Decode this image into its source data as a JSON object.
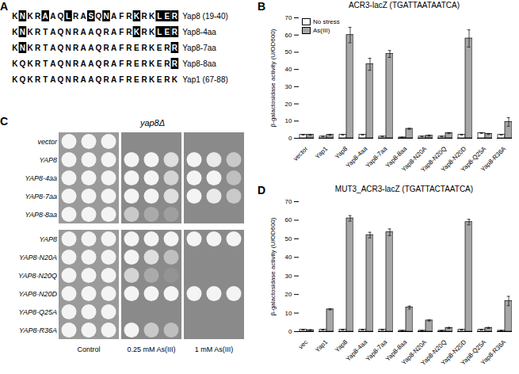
{
  "chart_data": [
    {
      "type": "bar",
      "title": "ACR3-lacZ (TGATTAATAATCA)",
      "y_label": "β-galactosidase activity (U/OD600)",
      "categories": [
        "vector",
        "Yap1",
        "Yap8",
        "Yap8-4aa",
        "Yap8-7aa",
        "Yap8-8aa",
        "Yap8-N20A",
        "Yap8-N20Q",
        "Yap8-N20D",
        "Yap8-Q25A",
        "Yap8-R36A"
      ],
      "series": [
        {
          "name": "No stress",
          "color": "#ffffff",
          "values": [
            2,
            1,
            2,
            2,
            1,
            0.5,
            1,
            1,
            2,
            3,
            2
          ],
          "errors": [
            0.2,
            0.2,
            0.3,
            0.3,
            0.2,
            0.1,
            0.2,
            0.2,
            0.3,
            0.3,
            0.3
          ]
        },
        {
          "name": "As(III)",
          "color": "#a6a6a6",
          "values": [
            2,
            2,
            60,
            43,
            49,
            5.5,
            1.5,
            3,
            58,
            2.5,
            9.5
          ],
          "errors": [
            0.3,
            0.3,
            4.5,
            3.5,
            2,
            0.3,
            0.3,
            0.3,
            5,
            0.3,
            2.5
          ]
        }
      ],
      "ylim": [
        0,
        70
      ],
      "yticks": [
        0,
        10,
        20,
        30,
        40,
        50,
        60,
        70
      ],
      "legend": "top-left"
    },
    {
      "type": "bar",
      "title": "MUT3_ACR3-lacZ (TGATTACTAATCA)",
      "y_label": "β-galactosidase activity (U/OD600)",
      "categories": [
        "vec",
        "Yap1",
        "Yap8",
        "Yap8-4aa",
        "Yap8-7aa",
        "Yap8-8aa",
        "Yap8-N20A",
        "Yap8-N20Q",
        "Yap8-N20D",
        "Yap8-Q25A",
        "Yap8-R36A"
      ],
      "series": [
        {
          "name": "No stress",
          "color": "#ffffff",
          "values": [
            1,
            1,
            1,
            1,
            1,
            0.5,
            0.5,
            0.5,
            1,
            1,
            0.5
          ],
          "errors": [
            0.2,
            0.2,
            0.2,
            0.2,
            0.2,
            0.1,
            0.1,
            0.1,
            0.2,
            0.2,
            0.1
          ]
        },
        {
          "name": "As(III)",
          "color": "#a6a6a6",
          "values": [
            0.8,
            12,
            61,
            52,
            53.5,
            13,
            6,
            2,
            59,
            2,
            16.5
          ],
          "errors": [
            0.2,
            0.3,
            1.5,
            1.5,
            1.8,
            0.8,
            0.3,
            0.3,
            1.5,
            0.3,
            2.5
          ]
        }
      ],
      "ylim": [
        0,
        70
      ],
      "yticks": [
        0,
        10,
        20,
        30,
        40,
        50,
        60,
        70
      ]
    }
  ],
  "panel_labels": [
    "A",
    "B",
    "C",
    "D"
  ],
  "alignment": {
    "rows": [
      {
        "sequence": "KNKRAAQLRASQNAFRKRKLER",
        "name": "Yap8 (19-40)"
      },
      {
        "sequence": "KNKRTAQNRAAQRAFRKRKLER",
        "name": "Yap8-4aa"
      },
      {
        "sequence": "KNKRTAQNRAAQRAFRERKERR",
        "name": "Yap8-7aa"
      },
      {
        "sequence": "KQKRTAQNRAAQRAFRERKERR",
        "name": "Yap8-8aa"
      },
      {
        "sequence": "KQKRTAQNRAAQRAFRERKERK",
        "name": "Yap1 (67-88)"
      }
    ]
  },
  "spot_assay": {
    "header": "yap8Δ",
    "conditions": [
      "Control",
      "0.25 mM As(III)",
      "1 mM As(III)"
    ],
    "groups": [
      [
        {
          "strain": "vector",
          "growth": [
            [
              1,
              1,
              1
            ],
            [
              0,
              0,
              0
            ],
            [
              0,
              0,
              0
            ]
          ]
        },
        {
          "strain": "YAP8",
          "growth": [
            [
              1,
              1,
              1
            ],
            [
              1,
              1,
              0.8
            ],
            [
              1,
              0.9,
              0.6
            ]
          ]
        },
        {
          "strain": "YAP8-4aa",
          "growth": [
            [
              1,
              1,
              1
            ],
            [
              1,
              1,
              0.7
            ],
            [
              1,
              1,
              0.5
            ]
          ]
        },
        {
          "strain": "YAP8-7aa",
          "growth": [
            [
              1,
              1,
              1
            ],
            [
              1,
              1,
              0.8
            ],
            [
              1,
              0.9,
              0.6
            ]
          ]
        },
        {
          "strain": "YAP8-8aa",
          "growth": [
            [
              1,
              1,
              1
            ],
            [
              0.6,
              0.3,
              0.2
            ],
            [
              0,
              0,
              0
            ]
          ]
        }
      ],
      [
        {
          "strain": "YAP8",
          "growth": [
            [
              1,
              1,
              1
            ],
            [
              1,
              1,
              1
            ],
            [
              1,
              1,
              1
            ]
          ]
        },
        {
          "strain": "YAP8-N20A",
          "growth": [
            [
              1,
              1,
              1
            ],
            [
              1,
              0.8,
              0.5
            ],
            [
              0,
              0,
              0
            ]
          ]
        },
        {
          "strain": "YAP8-N20Q",
          "growth": [
            [
              1,
              1,
              1
            ],
            [
              0.7,
              0.3,
              0.1
            ],
            [
              0,
              0,
              0
            ]
          ]
        },
        {
          "strain": "YAP8-N20D",
          "growth": [
            [
              1,
              1,
              1
            ],
            [
              1,
              1,
              1
            ],
            [
              1,
              1,
              1
            ]
          ]
        },
        {
          "strain": "YAP8-Q25A",
          "growth": [
            [
              1,
              1,
              1
            ],
            [
              0,
              0,
              0
            ],
            [
              0,
              0,
              0
            ]
          ]
        },
        {
          "strain": "YAP8-R36A",
          "growth": [
            [
              1,
              1,
              1
            ],
            [
              1,
              0.6,
              0.5
            ],
            [
              0,
              0,
              0
            ]
          ]
        }
      ]
    ]
  }
}
